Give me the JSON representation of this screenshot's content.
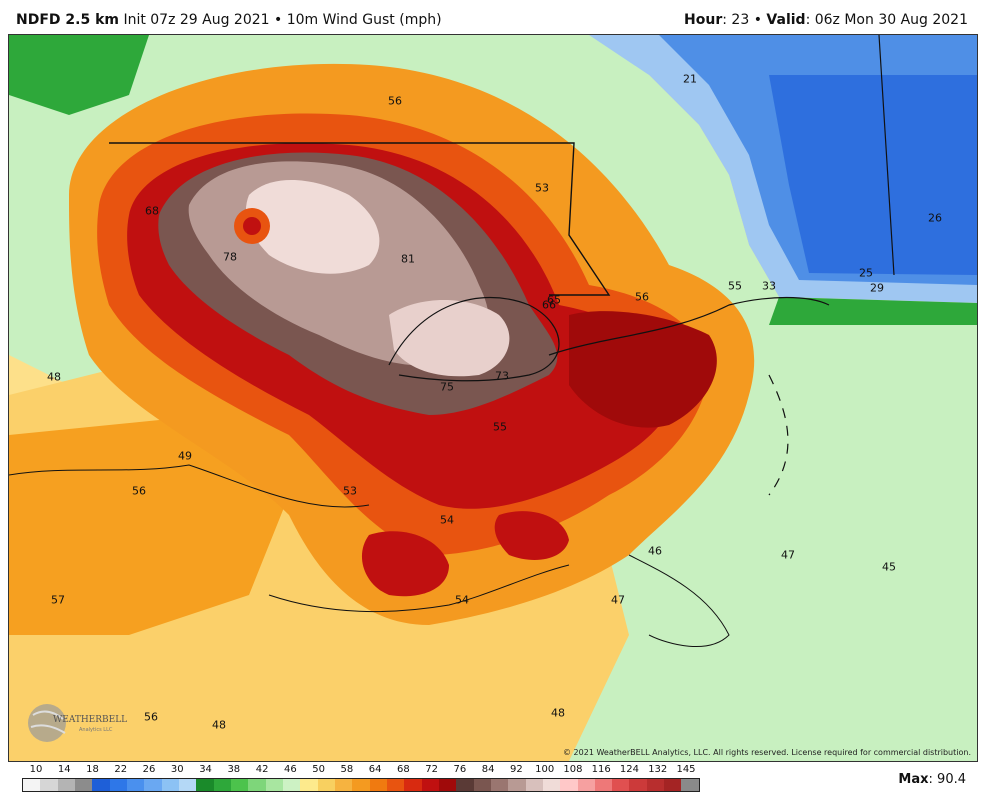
{
  "header": {
    "model": "NDFD 2.5 km",
    "init": "Init 07z 29 Aug 2021",
    "bullet": "•",
    "field": "10m Wind Gust (mph)",
    "hour_label": "Hour",
    "hour_value": "23",
    "valid_label": "Valid",
    "valid_value": "06z Mon 30 Aug 2021"
  },
  "map": {
    "labels": [
      {
        "text": "56"
      },
      {
        "text": "21"
      },
      {
        "text": "53"
      },
      {
        "text": "68"
      },
      {
        "text": "78"
      },
      {
        "text": "81"
      },
      {
        "text": "26"
      },
      {
        "text": "25"
      },
      {
        "text": "29"
      },
      {
        "text": "55"
      },
      {
        "text": "33"
      },
      {
        "text": "56"
      },
      {
        "text": "65"
      },
      {
        "text": "66"
      },
      {
        "text": "48"
      },
      {
        "text": "75"
      },
      {
        "text": "73"
      },
      {
        "text": "55"
      },
      {
        "text": "49"
      },
      {
        "text": "56"
      },
      {
        "text": "53"
      },
      {
        "text": "54"
      },
      {
        "text": "46"
      },
      {
        "text": "47"
      },
      {
        "text": "45"
      },
      {
        "text": "57"
      },
      {
        "text": "54"
      },
      {
        "text": "47"
      },
      {
        "text": "56"
      },
      {
        "text": "48"
      },
      {
        "text": "48"
      }
    ],
    "copyright": "© 2021 WeatherBELL Analytics, LLC. All rights reserved. License required for commercial distribution.",
    "logo_text": "WEATHERBELL",
    "logo_sub": "Analytics LLC"
  },
  "legend": {
    "ticks": [
      "10",
      "14",
      "18",
      "22",
      "26",
      "30",
      "34",
      "38",
      "42",
      "46",
      "50",
      "58",
      "64",
      "68",
      "72",
      "76",
      "84",
      "92",
      "100",
      "108",
      "116",
      "124",
      "132",
      "145"
    ],
    "colors": [
      "#f4f4f4",
      "#d6d6d6",
      "#b4b4b4",
      "#8c8c8c",
      "#1e5fd8",
      "#2e77e8",
      "#4a90ee",
      "#6aa8f2",
      "#8cc2f4",
      "#b4d8f6",
      "#1a8a2a",
      "#2ea83a",
      "#4cc34c",
      "#7ed67a",
      "#a8e6a0",
      "#cdf2c4",
      "#fdea8c",
      "#f8d060",
      "#f6b340",
      "#f49a20",
      "#f07a10",
      "#e85410",
      "#d82a10",
      "#c01010",
      "#a00a0a",
      "#5a3a36",
      "#7a5650",
      "#9a7670",
      "#b89a94",
      "#d8c0bc",
      "#f0dcd8",
      "#ffc8c8",
      "#f6a0a0",
      "#ee7878",
      "#e05050",
      "#cc3a3a",
      "#b82e2e",
      "#a42424",
      "#8a8a8a"
    ],
    "max_label": "Max",
    "max_value": "90.4"
  }
}
